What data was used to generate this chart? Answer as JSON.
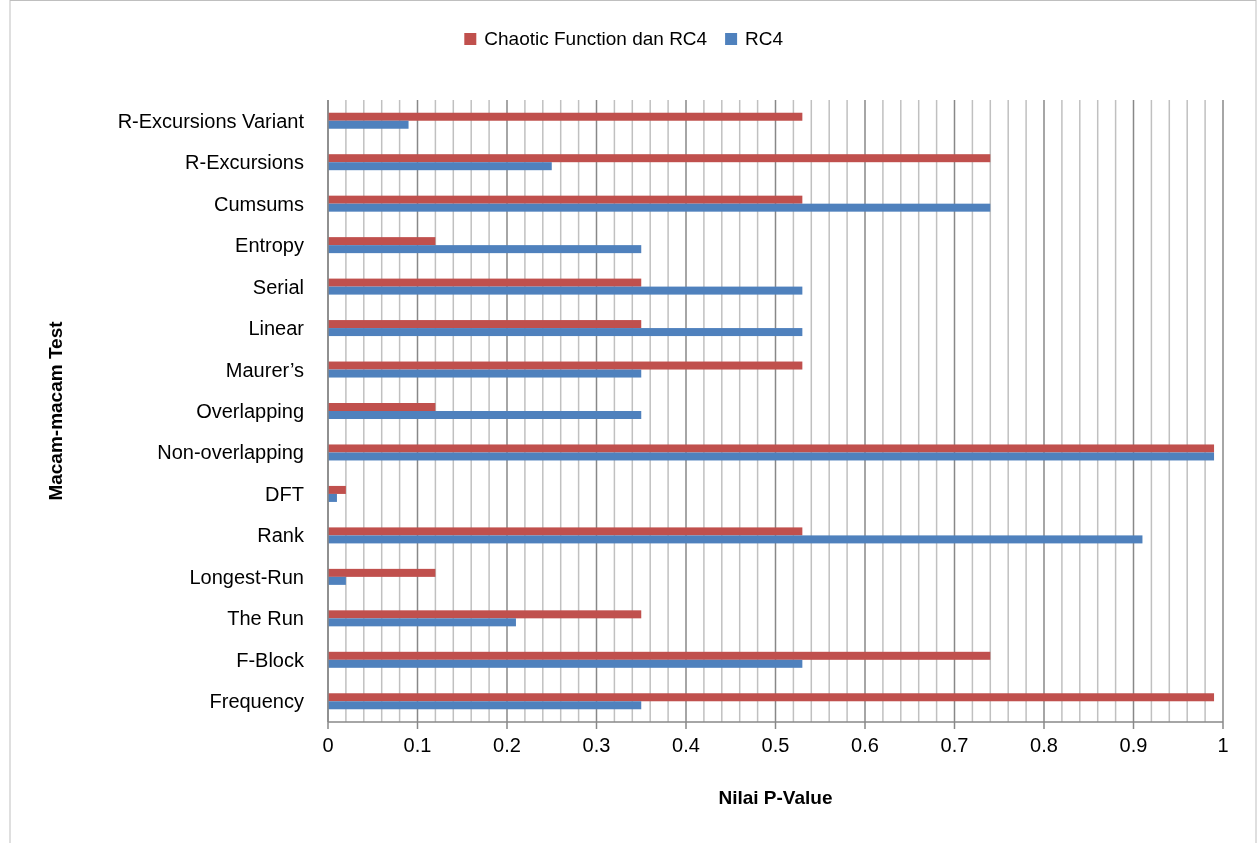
{
  "chart_data": {
    "type": "bar",
    "orientation": "horizontal",
    "xlabel": "Nilai P-Value",
    "ylabel": "Macam-macam Test",
    "categories": [
      "R-Excursions Variant",
      "R-Excursions",
      "Cumsums",
      "Entropy",
      "Serial",
      "Linear",
      "Maurer’s",
      "Overlapping",
      "Non-overlapping",
      "DFT",
      "Rank",
      "Longest-Run",
      "The Run",
      "F-Block",
      "Frequency"
    ],
    "series": [
      {
        "name": "Chaotic Function dan RC4",
        "color": "#c0504d",
        "values": [
          0.53,
          0.74,
          0.53,
          0.12,
          0.35,
          0.35,
          0.53,
          0.12,
          0.99,
          0.02,
          0.53,
          0.12,
          0.35,
          0.74,
          0.99
        ]
      },
      {
        "name": "RC4",
        "color": "#4f81bd",
        "values": [
          0.09,
          0.25,
          0.74,
          0.35,
          0.53,
          0.53,
          0.35,
          0.35,
          0.99,
          0.01,
          0.91,
          0.02,
          0.21,
          0.53,
          0.35
        ]
      }
    ],
    "xlim": [
      0,
      1
    ],
    "xticks": [
      0,
      {
        "value": 0.02,
        "label": null
      },
      {
        "value": 0.04,
        "label": null
      },
      {
        "value": 0.06,
        "label": null
      },
      {
        "value": 0.08,
        "label": null
      },
      0.1,
      {
        "value": 0.12,
        "label": null
      },
      {
        "value": 0.14,
        "label": null
      },
      {
        "value": 0.16,
        "label": null
      },
      {
        "value": 0.18,
        "label": null
      },
      0.2,
      {
        "value": 0.22,
        "label": null
      },
      {
        "value": 0.24,
        "label": null
      },
      {
        "value": 0.26,
        "label": null
      },
      {
        "value": 0.28,
        "label": null
      },
      0.3,
      {
        "value": 0.32,
        "label": null
      },
      {
        "value": 0.34,
        "label": null
      },
      {
        "value": 0.36,
        "label": null
      },
      {
        "value": 0.38,
        "label": null
      },
      0.4,
      {
        "value": 0.42,
        "label": null
      },
      {
        "value": 0.44,
        "label": null
      },
      {
        "value": 0.46,
        "label": null
      },
      {
        "value": 0.48,
        "label": null
      },
      0.5,
      {
        "value": 0.52,
        "label": null
      },
      {
        "value": 0.54,
        "label": null
      },
      {
        "value": 0.56,
        "label": null
      },
      {
        "value": 0.58,
        "label": null
      },
      0.6,
      {
        "value": 0.62,
        "label": null
      },
      {
        "value": 0.64,
        "label": null
      },
      {
        "value": 0.66,
        "label": null
      },
      {
        "value": 0.68,
        "label": null
      },
      0.7,
      {
        "value": 0.72,
        "label": null
      },
      {
        "value": 0.74,
        "label": null
      },
      {
        "value": 0.76,
        "label": null
      },
      {
        "value": 0.78,
        "label": null
      },
      0.8,
      {
        "value": 0.82,
        "label": null
      },
      {
        "value": 0.84,
        "label": null
      },
      {
        "value": 0.86,
        "label": null
      },
      {
        "value": 0.88,
        "label": null
      },
      0.9,
      {
        "value": 0.92,
        "label": null
      },
      {
        "value": 0.94,
        "label": null
      },
      {
        "value": 0.96,
        "label": null
      },
      {
        "value": 0.98,
        "label": null
      },
      1
    ],
    "grid": "x",
    "legend": "top"
  }
}
